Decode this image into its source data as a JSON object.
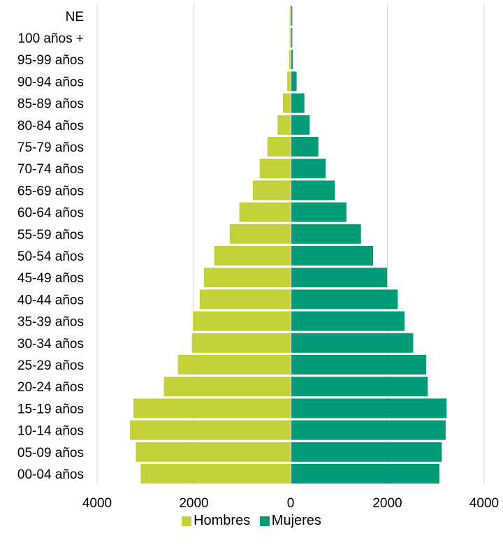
{
  "chart_data": {
    "type": "bar",
    "orientation": "horizontal",
    "style": "population-pyramid",
    "categories": [
      "00-04 años",
      "05-09 años",
      "10-14 años",
      "15-19 años",
      "20-24 años",
      "25-29 años",
      "30-34 años",
      "35-39 años",
      "40-44 años",
      "45-49 años",
      "50-54 años",
      "55-59 años",
      "60-64 años",
      "65-69 años",
      "70-74 años",
      "75-79 años",
      "80-84 años",
      "85-89 años",
      "90-94 años",
      "95-99 años",
      "100 años +",
      "NE"
    ],
    "series": [
      {
        "name": "Hombres",
        "color": "#c4d138",
        "values": [
          3100,
          3200,
          3320,
          3250,
          2620,
          2330,
          2040,
          2020,
          1880,
          1790,
          1580,
          1260,
          1060,
          780,
          640,
          480,
          270,
          160,
          70,
          30,
          20,
          20
        ]
      },
      {
        "name": "Mujeres",
        "color": "#009b77",
        "values": [
          3060,
          3110,
          3190,
          3210,
          2820,
          2790,
          2520,
          2340,
          2200,
          1980,
          1690,
          1440,
          1140,
          900,
          710,
          560,
          380,
          270,
          110,
          30,
          20,
          20
        ]
      }
    ],
    "xlim": [
      -4000,
      4000
    ],
    "x_ticks": [
      {
        "value": -4000,
        "label": "4000"
      },
      {
        "value": -2000,
        "label": "2000"
      },
      {
        "value": 0,
        "label": "0"
      },
      {
        "value": 2000,
        "label": "2000"
      },
      {
        "value": 4000,
        "label": "4000"
      }
    ],
    "grid": "vertical",
    "legend": "bottom-center",
    "title": "",
    "xlabel": "",
    "ylabel": ""
  }
}
